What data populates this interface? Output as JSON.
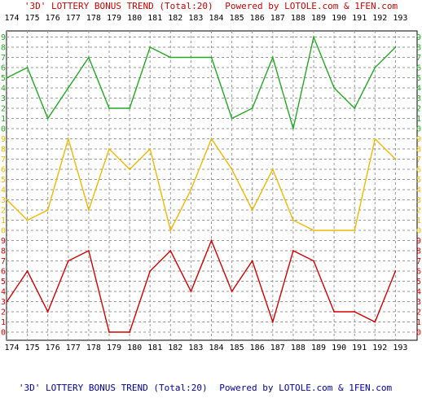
{
  "chart_data": {
    "type": "line",
    "title_parts": {
      "prefix": "'3D' LOTTERY BONUS TREND (Total:20)",
      "powered": "Powered by LOTOLE.com & 1FEN.com"
    },
    "categories": [
      "174",
      "175",
      "176",
      "177",
      "178",
      "179",
      "180",
      "181",
      "182",
      "183",
      "184",
      "185",
      "186",
      "187",
      "188",
      "189",
      "190",
      "191",
      "192",
      "193"
    ],
    "digit_labels": [
      "0",
      "1",
      "2",
      "3",
      "4",
      "5",
      "6",
      "7",
      "8",
      "9"
    ],
    "ylim": [
      0,
      9
    ],
    "grid": true,
    "series": [
      {
        "color": "#22aa22",
        "values": [
          5,
          6,
          1,
          4,
          7,
          2,
          2,
          8,
          7,
          7,
          7,
          1,
          2,
          7,
          0,
          9,
          4,
          2,
          6,
          8
        ]
      },
      {
        "color": "#f2b800",
        "values": [
          3,
          1,
          2,
          9,
          2,
          8,
          6,
          8,
          0,
          4,
          9,
          6,
          2,
          6,
          1,
          0,
          0,
          0,
          9,
          7
        ]
      },
      {
        "color": "#d40000",
        "values": [
          3,
          6,
          2,
          7,
          8,
          0,
          0,
          6,
          8,
          4,
          9,
          4,
          7,
          1,
          8,
          7,
          2,
          2,
          1,
          6
        ]
      }
    ],
    "colors": {
      "title_red": "#cc0000",
      "title_blue": "#000099",
      "frame": "#000000",
      "grid": "#999999"
    }
  }
}
